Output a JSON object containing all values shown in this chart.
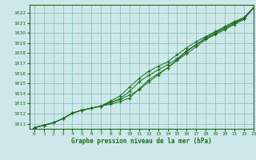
{
  "title": "Graphe pression niveau de la mer (hPa)",
  "xlim": [
    -0.5,
    23
  ],
  "ylim": [
    1010.5,
    1022.8
  ],
  "xticks": [
    0,
    1,
    2,
    3,
    4,
    5,
    6,
    7,
    8,
    9,
    10,
    11,
    12,
    13,
    14,
    15,
    16,
    17,
    18,
    19,
    20,
    21,
    22,
    23
  ],
  "yticks": [
    1011,
    1012,
    1013,
    1014,
    1015,
    1016,
    1017,
    1018,
    1019,
    1020,
    1021,
    1022
  ],
  "bg_color": "#cce8e8",
  "grid_color": "#88bbbb",
  "line_color": "#1a6e1a",
  "text_color": "#1a6e1a",
  "series": [
    [
      1010.6,
      1010.85,
      1011.1,
      1011.5,
      1012.05,
      1012.35,
      1012.55,
      1012.75,
      1012.95,
      1013.2,
      1013.55,
      1014.45,
      1015.35,
      1015.95,
      1016.55,
      1017.3,
      1017.95,
      1018.65,
      1019.35,
      1019.85,
      1020.35,
      1020.85,
      1021.35,
      1022.5
    ],
    [
      1010.6,
      1010.85,
      1011.1,
      1011.5,
      1012.05,
      1012.35,
      1012.55,
      1012.75,
      1013.1,
      1013.5,
      1014.2,
      1015.15,
      1015.8,
      1016.35,
      1016.85,
      1017.45,
      1018.25,
      1018.85,
      1019.45,
      1019.95,
      1020.45,
      1020.95,
      1021.45,
      1022.5
    ],
    [
      1010.6,
      1010.85,
      1011.1,
      1011.5,
      1012.05,
      1012.35,
      1012.55,
      1012.75,
      1013.25,
      1013.75,
      1014.65,
      1015.5,
      1016.2,
      1016.7,
      1017.15,
      1017.85,
      1018.55,
      1019.15,
      1019.65,
      1020.15,
      1020.65,
      1021.15,
      1021.55,
      1022.5
    ],
    [
      1010.6,
      1010.85,
      1011.1,
      1011.5,
      1012.05,
      1012.35,
      1012.55,
      1012.75,
      1013.1,
      1013.4,
      1013.85,
      1014.35,
      1015.15,
      1015.85,
      1016.55,
      1017.35,
      1018.15,
      1018.85,
      1019.55,
      1020.05,
      1020.55,
      1021.05,
      1021.45,
      1022.5
    ]
  ]
}
